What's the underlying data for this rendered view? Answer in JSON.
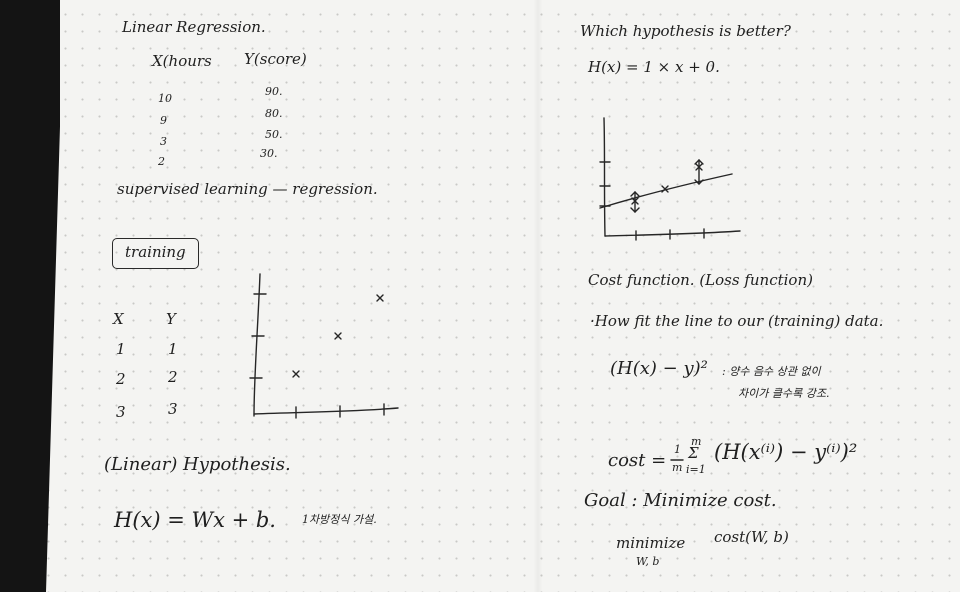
{
  "left": {
    "title": "Linear Regression.",
    "header_x": "X(hours",
    "header_y": "Y(score)",
    "rows": [
      {
        "x": "10",
        "y": "90."
      },
      {
        "x": "9",
        "y": "80."
      },
      {
        "x": "3",
        "y": "50."
      },
      {
        "x": "2",
        "y": "30."
      }
    ],
    "supervised_note": "supervised learning — regression.",
    "training_label": "training",
    "train_x_header": "X",
    "train_y_header": "Y",
    "train_rows": [
      {
        "x": "1",
        "y": "1"
      },
      {
        "x": "2",
        "y": "2"
      },
      {
        "x": "3",
        "y": "3"
      }
    ],
    "scatter_points": [
      {
        "x": 1,
        "y": 1
      },
      {
        "x": 2,
        "y": 2
      },
      {
        "x": 3,
        "y": 3
      }
    ],
    "hypothesis_title": "(Linear) Hypothesis.",
    "hypothesis_formula": "H(x) = Wx + b.",
    "hypothesis_note": "1차방정식 가설."
  },
  "right": {
    "question": "Which hypothesis is better?",
    "example_formula": "H(x) = 1 × x + 0.",
    "cost_title": "Cost function. (Loss function)",
    "fit_note": "·How fit the line to our (training) data.",
    "squared_error": "(H(x) − y)²",
    "korean_note_1": ": 양수 음수 상관 없이",
    "korean_note_2": "차이가 클수록 강조.",
    "cost_formula_lhs": "cost =",
    "cost_formula_frac_num": "1",
    "cost_formula_frac_den": "m",
    "cost_formula_sum_top": "m",
    "cost_formula_sum_bottom": "i=1",
    "cost_formula_body": "(H(x⁽ⁱ⁾) − y⁽ⁱ⁾)²",
    "goal": "Goal : Minimize cost.",
    "minimize_word": "minimize",
    "minimize_vars": "W, b",
    "minimize_target": "cost(W, b)"
  }
}
